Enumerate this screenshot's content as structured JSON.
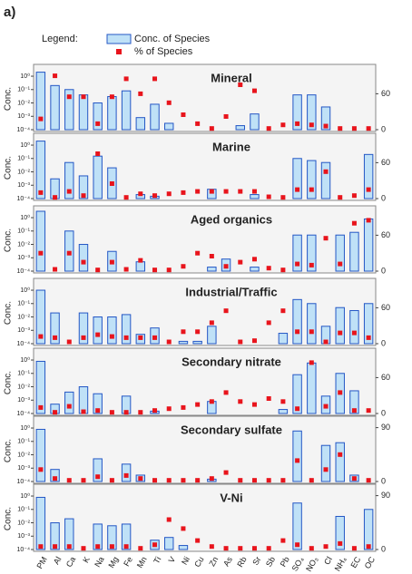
{
  "panel_label": "a)",
  "legend_label": "Legend:",
  "chart_data": [
    {
      "type": "bar-dot",
      "title": "Mineral",
      "y_label": "Conc.",
      "log": true,
      "ylim": [
        0.0001,
        3
      ],
      "yticks": [
        {
          "value": 1,
          "label": "10⁰"
        },
        {
          "value": 0.1,
          "label": "10⁻¹"
        },
        {
          "value": 0.01,
          "label": "10⁻²"
        },
        {
          "value": 0.001,
          "label": "10⁻³"
        },
        {
          "value": 0.0001,
          "label": "10⁻⁴"
        }
      ],
      "y2lim": [
        0,
        100
      ],
      "y2ticks": [
        0,
        60
      ],
      "series": [
        {
          "name": "Conc. of Species",
          "color": "#bfe1f7",
          "values": [
            2,
            0.2,
            0.1,
            0.04,
            0.01,
            0.03,
            0.08,
            0.0008,
            0.008,
            0.0003,
            0.0001,
            0.0001,
            0.0001,
            0.0001,
            0.0002,
            0.0015,
            0.0001,
            0.0001,
            0.04,
            0.04,
            0.005,
            0.0001,
            0.0001,
            0.0001
          ]
        },
        {
          "name": "% of Species",
          "color": "#e8141c",
          "axis": "y2",
          "values": [
            18,
            90,
            55,
            55,
            10,
            55,
            85,
            60,
            85,
            45,
            25,
            10,
            2,
            22,
            75,
            65,
            2,
            8,
            10,
            8,
            6,
            2,
            2,
            2
          ]
        }
      ]
    },
    {
      "type": "bar-dot",
      "title": "Marine",
      "y_label": "Conc.",
      "log": true,
      "ylim": [
        0.0001,
        3
      ],
      "yticks": [
        {
          "value": 1,
          "label": "10⁰"
        },
        {
          "value": 0.1,
          "label": "10⁻¹"
        },
        {
          "value": 0.01,
          "label": "10⁻²"
        },
        {
          "value": 0.001,
          "label": "10⁻³"
        },
        {
          "value": 0.0001,
          "label": "10⁻⁴"
        }
      ],
      "y2lim": [
        0,
        100
      ],
      "y2ticks": [
        0,
        60
      ],
      "series": [
        {
          "color": "#bfe1f7",
          "values": [
            2,
            0.003,
            0.05,
            0.005,
            0.15,
            0.02,
            0.0001,
            0.0002,
            0.00015,
            0.0001,
            0.0001,
            0.0001,
            0.0005,
            0.0001,
            0.0001,
            0.0002,
            0.0001,
            0.0001,
            0.1,
            0.07,
            0.05,
            0.0001,
            0.0001,
            0.2
          ]
        },
        {
          "color": "#e8141c",
          "axis": "y2",
          "values": [
            10,
            2,
            12,
            5,
            75,
            25,
            2,
            8,
            5,
            8,
            10,
            12,
            12,
            12,
            12,
            12,
            3,
            2,
            15,
            15,
            45,
            2,
            5,
            15
          ]
        }
      ]
    },
    {
      "type": "bar-dot",
      "title": "Aged organics",
      "y_label": "Conc.",
      "log": true,
      "ylim": [
        0.0001,
        3
      ],
      "yticks": [
        {
          "value": 1,
          "label": "10⁰"
        },
        {
          "value": 0.1,
          "label": "10⁻¹"
        },
        {
          "value": 0.01,
          "label": "10⁻²"
        },
        {
          "value": 0.001,
          "label": "10⁻³"
        },
        {
          "value": 0.0001,
          "label": "10⁻⁴"
        }
      ],
      "y2lim": [
        0,
        100
      ],
      "y2ticks": [
        0,
        60
      ],
      "series": [
        {
          "color": "#bfe1f7",
          "values": [
            3,
            0.0001,
            0.1,
            0.01,
            0.0001,
            0.003,
            0.0001,
            0.0005,
            0.0001,
            0.0001,
            0.0001,
            0.0001,
            0.0002,
            0.0008,
            0.0001,
            0.0002,
            0.0001,
            0.0001,
            0.05,
            0.05,
            0.0001,
            0.05,
            0.08,
            0.8
          ]
        },
        {
          "color": "#e8141c",
          "axis": "y2",
          "values": [
            30,
            3,
            30,
            15,
            2,
            15,
            3,
            18,
            2,
            2,
            8,
            30,
            25,
            8,
            15,
            20,
            5,
            2,
            12,
            10,
            55,
            12,
            80,
            85
          ]
        }
      ]
    },
    {
      "type": "bar-dot",
      "title": "Industrial/Traffic",
      "y_label": "Conc.",
      "log": true,
      "ylim": [
        0.0001,
        3
      ],
      "yticks": [
        {
          "value": 1,
          "label": "10⁰"
        },
        {
          "value": 0.1,
          "label": "10⁻¹"
        },
        {
          "value": 0.01,
          "label": "10⁻²"
        },
        {
          "value": 0.001,
          "label": "10⁻³"
        },
        {
          "value": 0.0001,
          "label": "10⁻⁴"
        }
      ],
      "y2lim": [
        0,
        100
      ],
      "y2ticks": [
        0,
        60
      ],
      "series": [
        {
          "color": "#bfe1f7",
          "values": [
            1,
            0.02,
            0.0001,
            0.02,
            0.01,
            0.01,
            0.015,
            0.0005,
            0.0015,
            0.0001,
            0.00015,
            0.00015,
            0.002,
            0.0001,
            0.0001,
            0.0001,
            0.0001,
            0.0006,
            0.2,
            0.1,
            0.002,
            0.05,
            0.03,
            0.1
          ]
        },
        {
          "color": "#e8141c",
          "axis": "y2",
          "values": [
            12,
            10,
            3,
            10,
            15,
            12,
            10,
            10,
            10,
            3,
            20,
            20,
            35,
            55,
            3,
            5,
            35,
            55,
            20,
            20,
            3,
            18,
            18,
            10
          ]
        }
      ]
    },
    {
      "type": "bar-dot",
      "title": "Secondary nitrate",
      "y_label": "Conc.",
      "log": true,
      "ylim": [
        0.0001,
        3
      ],
      "yticks": [
        {
          "value": 1,
          "label": "10⁰"
        },
        {
          "value": 0.1,
          "label": "10⁻¹"
        },
        {
          "value": 0.01,
          "label": "10⁻²"
        },
        {
          "value": 0.001,
          "label": "10⁻³"
        },
        {
          "value": 0.0001,
          "label": "10⁻⁴"
        }
      ],
      "y2lim": [
        0,
        100
      ],
      "y2ticks": [
        0,
        60
      ],
      "series": [
        {
          "color": "#bfe1f7",
          "values": [
            0.8,
            0.0005,
            0.004,
            0.01,
            0.003,
            0.0001,
            0.002,
            0.0001,
            0.00015,
            0.0001,
            0.0001,
            0.0001,
            0.0008,
            0.0001,
            0.0001,
            0.0001,
            0.0001,
            0.0002,
            0.08,
            0.6,
            0.002,
            0.1,
            0.005,
            0.0001
          ]
        },
        {
          "color": "#e8141c",
          "axis": "y2",
          "values": [
            10,
            2,
            12,
            3,
            5,
            2,
            2,
            2,
            5,
            8,
            10,
            15,
            20,
            35,
            20,
            15,
            25,
            20,
            8,
            85,
            12,
            35,
            5,
            5
          ]
        }
      ]
    },
    {
      "type": "bar-dot",
      "title": "Secondary sulfate",
      "y_label": "Conc.",
      "log": true,
      "ylim": [
        0.0001,
        3
      ],
      "yticks": [
        {
          "value": 1,
          "label": "10⁰"
        },
        {
          "value": 0.1,
          "label": "10⁻¹"
        },
        {
          "value": 0.01,
          "label": "10⁻²"
        },
        {
          "value": 0.001,
          "label": "10⁻³"
        },
        {
          "value": 0.0001,
          "label": "10⁻⁴"
        }
      ],
      "y2lim": [
        0,
        100
      ],
      "y2ticks": [
        0,
        90
      ],
      "series": [
        {
          "color": "#bfe1f7",
          "values": [
            0.8,
            0.0008,
            0.0001,
            0.0001,
            0.005,
            0.0001,
            0.002,
            0.0003,
            0.0001,
            0.0001,
            0.0001,
            0.0001,
            0.00015,
            0.0001,
            0.0001,
            0.0001,
            0.0001,
            0.0001,
            0.6,
            0.0001,
            0.05,
            0.08,
            0.0003,
            0.0001
          ]
        },
        {
          "color": "#e8141c",
          "axis": "y2",
          "values": [
            20,
            5,
            2,
            2,
            8,
            2,
            10,
            5,
            2,
            2,
            2,
            2,
            5,
            15,
            2,
            2,
            2,
            2,
            35,
            2,
            20,
            45,
            5,
            2
          ]
        }
      ]
    },
    {
      "type": "bar-dot",
      "title": "V-Ni",
      "y_label": "Conc.",
      "log": true,
      "ylim": [
        0.0001,
        3
      ],
      "yticks": [
        {
          "value": 1,
          "label": "10⁰"
        },
        {
          "value": 0.1,
          "label": "10⁻¹"
        },
        {
          "value": 0.01,
          "label": "10⁻²"
        },
        {
          "value": 0.001,
          "label": "10⁻³"
        },
        {
          "value": 0.0001,
          "label": "10⁻⁴"
        }
      ],
      "y2lim": [
        0,
        100
      ],
      "y2ticks": [
        0,
        90
      ],
      "categories": [
        "PM",
        "Al",
        "Ca",
        "K",
        "Na",
        "Mg",
        "Fe",
        "Mn",
        "Ti",
        "V",
        "Ni",
        "Cu",
        "Zn",
        "As",
        "Rb",
        "Sr",
        "Sb",
        "Pb",
        "SO₄",
        "NO₃",
        "Cl",
        "NH₄",
        "EC",
        "OC"
      ],
      "series": [
        {
          "color": "#bfe1f7",
          "values": [
            0.8,
            0.01,
            0.02,
            0.0001,
            0.008,
            0.006,
            0.008,
            0.0001,
            0.0005,
            0.0008,
            0.0002,
            0.0001,
            0.0001,
            0.0001,
            0.0001,
            0.0001,
            0.0001,
            0.0001,
            0.3,
            0.0001,
            0.0001,
            0.03,
            0.0001,
            0.1
          ]
        },
        {
          "color": "#e8141c",
          "axis": "y2",
          "values": [
            5,
            5,
            5,
            2,
            5,
            5,
            5,
            2,
            8,
            50,
            35,
            15,
            5,
            2,
            2,
            2,
            2,
            15,
            8,
            2,
            5,
            10,
            2,
            5
          ]
        }
      ]
    }
  ]
}
